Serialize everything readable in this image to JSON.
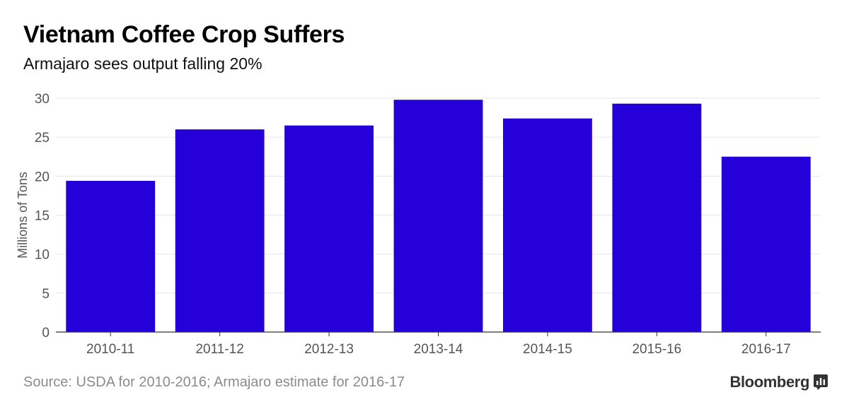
{
  "header": {
    "title": "Vietnam Coffee Crop Suffers",
    "subtitle": "Armajaro sees output falling 20%"
  },
  "footer": {
    "source": "Source: USDA for 2010-2016; Armajaro estimate for 2016-17",
    "brand": "Bloomberg"
  },
  "colors": {
    "bar": "#2600d9",
    "grid": "#e6e6e6",
    "axis": "#333333",
    "tick_text": "#555555"
  },
  "chart_data": {
    "type": "bar",
    "title": "Vietnam Coffee Crop Suffers",
    "subtitle": "Armajaro sees output falling 20%",
    "xlabel": "",
    "ylabel": "Millions of Tons",
    "categories": [
      "2010-11",
      "2011-12",
      "2012-13",
      "2013-14",
      "2014-15",
      "2015-16",
      "2016-17"
    ],
    "values": [
      19.4,
      26.0,
      26.5,
      29.8,
      27.4,
      29.3,
      22.5
    ],
    "ylim": [
      0,
      30
    ],
    "yticks": [
      0,
      5,
      10,
      15,
      20,
      25,
      30
    ],
    "grid": true,
    "legend": "none"
  }
}
